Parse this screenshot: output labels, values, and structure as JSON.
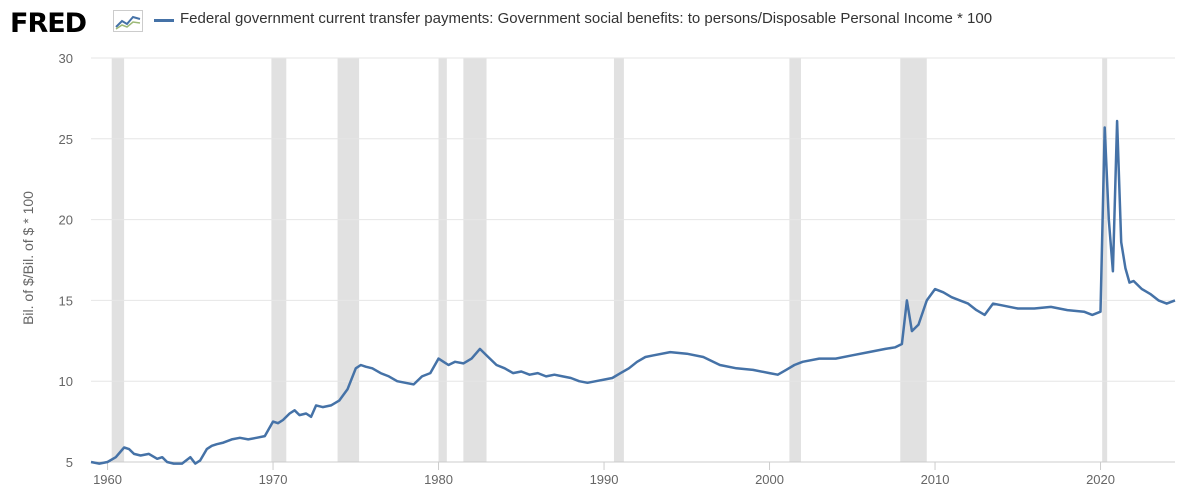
{
  "header": {
    "logo_text": "FRED",
    "legend_label": "Federal government current transfer payments: Government social benefits: to persons/Disposable Personal Income * 100"
  },
  "colors": {
    "series": "#4572a7",
    "recession": "#e1e1e1",
    "grid": "#e6e6e6"
  },
  "chart_data": {
    "type": "line",
    "title": "Federal government current transfer payments: Government social benefits: to persons/Disposable Personal Income * 100",
    "xlabel": "",
    "ylabel": "Bil. of $/Bil. of $ * 100",
    "xlim": [
      1959.0,
      2024.5
    ],
    "ylim": [
      5,
      30
    ],
    "yticks": [
      5,
      10,
      15,
      20,
      25,
      30
    ],
    "xticks": [
      1960,
      1970,
      1980,
      1990,
      2000,
      2010,
      2020
    ],
    "grid": true,
    "recessions": [
      [
        1960.25,
        1961.0
      ],
      [
        1969.9,
        1970.8
      ],
      [
        1973.9,
        1975.2
      ],
      [
        1980.0,
        1980.5
      ],
      [
        1981.5,
        1982.9
      ],
      [
        1990.6,
        1991.2
      ],
      [
        2001.2,
        2001.9
      ],
      [
        2007.9,
        2009.5
      ],
      [
        2020.1,
        2020.4
      ]
    ],
    "series": [
      {
        "name": "Federal government current transfer payments: Government social benefits: to persons/Disposable Personal Income * 100",
        "x": [
          1959.0,
          1959.5,
          1960.0,
          1960.5,
          1961.0,
          1961.3,
          1961.6,
          1962.0,
          1962.5,
          1963.0,
          1963.3,
          1963.6,
          1964.0,
          1964.5,
          1965.0,
          1965.3,
          1965.6,
          1966.0,
          1966.3,
          1966.6,
          1967.0,
          1967.5,
          1968.0,
          1968.5,
          1969.0,
          1969.5,
          1970.0,
          1970.3,
          1970.6,
          1971.0,
          1971.3,
          1971.6,
          1972.0,
          1972.3,
          1972.6,
          1973.0,
          1973.5,
          1974.0,
          1974.5,
          1975.0,
          1975.3,
          1975.6,
          1976.0,
          1976.5,
          1977.0,
          1977.5,
          1978.0,
          1978.5,
          1979.0,
          1979.5,
          1980.0,
          1980.3,
          1980.6,
          1981.0,
          1981.5,
          1982.0,
          1982.5,
          1983.0,
          1983.5,
          1984.0,
          1984.5,
          1985.0,
          1985.5,
          1986.0,
          1986.5,
          1987.0,
          1987.5,
          1988.0,
          1988.5,
          1989.0,
          1989.5,
          1990.0,
          1990.5,
          1991.0,
          1991.5,
          1992.0,
          1992.5,
          1993.0,
          1994.0,
          1995.0,
          1996.0,
          1997.0,
          1998.0,
          1999.0,
          2000.0,
          2000.5,
          2001.0,
          2001.5,
          2002.0,
          2003.0,
          2004.0,
          2005.0,
          2006.0,
          2007.0,
          2007.6,
          2008.0,
          2008.3,
          2008.6,
          2009.0,
          2009.5,
          2010.0,
          2010.5,
          2011.0,
          2011.5,
          2012.0,
          2012.5,
          2013.0,
          2013.5,
          2014.0,
          2015.0,
          2016.0,
          2017.0,
          2018.0,
          2019.0,
          2019.5,
          2020.0,
          2020.25,
          2020.5,
          2020.75,
          2021.0,
          2021.25,
          2021.5,
          2021.75,
          2022.0,
          2022.5,
          2023.0,
          2023.5,
          2024.0,
          2024.5
        ],
        "values": [
          5.0,
          4.9,
          5.0,
          5.3,
          5.9,
          5.8,
          5.5,
          5.4,
          5.5,
          5.2,
          5.3,
          5.0,
          4.9,
          4.9,
          5.3,
          4.9,
          5.1,
          5.8,
          6.0,
          6.1,
          6.2,
          6.4,
          6.5,
          6.4,
          6.5,
          6.6,
          7.5,
          7.4,
          7.6,
          8.0,
          8.2,
          7.9,
          8.0,
          7.8,
          8.5,
          8.4,
          8.5,
          8.8,
          9.5,
          10.8,
          11.0,
          10.9,
          10.8,
          10.5,
          10.3,
          10.0,
          9.9,
          9.8,
          10.3,
          10.5,
          11.4,
          11.2,
          11.0,
          11.2,
          11.1,
          11.4,
          12.0,
          11.5,
          11.0,
          10.8,
          10.5,
          10.6,
          10.4,
          10.5,
          10.3,
          10.4,
          10.3,
          10.2,
          10.0,
          9.9,
          10.0,
          10.1,
          10.2,
          10.5,
          10.8,
          11.2,
          11.5,
          11.6,
          11.8,
          11.7,
          11.5,
          11.0,
          10.8,
          10.7,
          10.5,
          10.4,
          10.7,
          11.0,
          11.2,
          11.4,
          11.4,
          11.6,
          11.8,
          12.0,
          12.1,
          12.3,
          15.0,
          13.1,
          13.5,
          15.0,
          15.7,
          15.5,
          15.2,
          15.0,
          14.8,
          14.4,
          14.1,
          14.8,
          14.7,
          14.5,
          14.5,
          14.6,
          14.4,
          14.3,
          14.1,
          14.3,
          25.7,
          20.0,
          16.8,
          26.1,
          18.6,
          17.0,
          16.1,
          16.2,
          15.7,
          15.4,
          15.0,
          14.8,
          15.0
        ]
      }
    ]
  }
}
